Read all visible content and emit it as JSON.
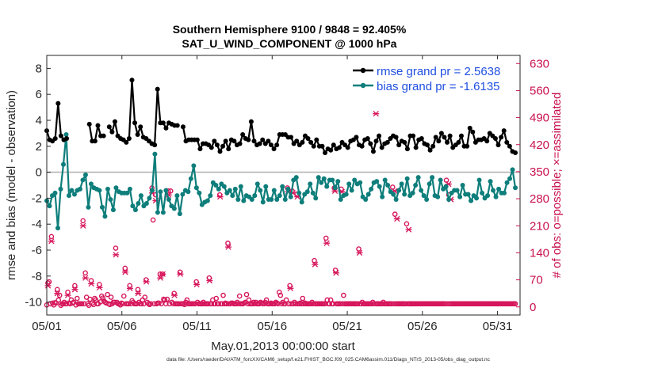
{
  "title": {
    "line1": "Southern Hemisphere 9100 / 9848 = 92.405%",
    "line2": "SAT_U_WIND_COMPONENT @ 1000 hPa"
  },
  "chart_data": {
    "type": "line",
    "title": "Southern Hemisphere 9100 / 9848 = 92.405%  SAT_U_WIND_COMPONENT @ 1000 hPa",
    "xlabel": "May.01,2013 00:00:00 start",
    "ylabel_left": "rmse and bias (model - observation)",
    "ylabel_right": "# of obs: o=possible; ×=assimilated",
    "xlim": [
      0,
      31.5
    ],
    "ylim_left": [
      -11,
      9
    ],
    "ylim_right": [
      -21,
      651
    ],
    "x_tick_values": [
      0,
      5,
      10,
      15,
      20,
      25,
      30
    ],
    "x_tick_labels": [
      "05/01",
      "05/06",
      "05/11",
      "05/16",
      "05/21",
      "05/26",
      "05/31"
    ],
    "y_left_ticks": [
      -10,
      -8,
      -6,
      -4,
      -2,
      0,
      2,
      4,
      6,
      8
    ],
    "y_right_ticks": [
      0,
      70,
      140,
      210,
      280,
      350,
      420,
      490,
      560,
      630
    ],
    "x_step_days": 0.25,
    "legend": {
      "position": "top-right",
      "entries": [
        "rmse grand pr = 2.5638",
        "bias grand pr = -1.6135"
      ]
    },
    "colors": {
      "rmse": "#000000",
      "bias": "#0e7e7b",
      "obs": "#d6175c",
      "right_axis": "#c8104f",
      "legend_text": "#1f4fe0",
      "zero_line": "#b4b4b4"
    },
    "series": [
      {
        "name": "rmse",
        "axis": "left",
        "values": [
          3.2,
          2.5,
          2.4,
          2.6,
          5.3,
          2.8,
          2.5,
          2.6,
          null,
          null,
          null,
          null,
          null,
          null,
          null,
          3.7,
          2.4,
          2.4,
          3.6,
          2.8,
          2.8,
          null,
          3.5,
          3.1,
          3.9,
          2.8,
          2.6,
          2.5,
          2.3,
          2.6,
          7.1,
          3.8,
          2.9,
          3.5,
          2.7,
          2.6,
          2.4,
          2.2,
          2.1,
          6.4,
          3.8,
          3.8,
          3.4,
          3.8,
          3.7,
          3.6,
          3.6,
          null,
          3.5,
          2.4,
          2.5,
          2.5,
          2.5,
          2.5,
          1.8,
          2.2,
          2.2,
          2.1,
          1.9,
          2.4,
          2.1,
          1.6,
          2.0,
          2.4,
          1.8,
          2.5,
          2.4,
          2.1,
          2.2,
          2.9,
          2.6,
          2.5,
          3.9,
          2.4,
          2.1,
          2.2,
          2.5,
          2.2,
          2.4,
          2.1,
          1.8,
          2.1,
          2.9,
          2.9,
          2.9,
          2.7,
          2.7,
          2.2,
          2.4,
          2.1,
          2.3,
          2.8,
          2.6,
          2.3,
          2.0,
          2.5,
          2.0,
          2.0,
          1.5,
          1.8,
          1.7,
          2.1,
          1.8,
          1.9,
          2.3,
          2.1,
          1.9,
          2.4,
          2.5,
          2.7,
          2.1,
          2.0,
          2.5,
          2.6,
          2.2,
          1.6,
          2.4,
          2.8,
          1.9,
          2.2,
          2.3,
          2.6,
          2.8,
          2.7,
          2.1,
          2.4,
          2.3,
          1.8,
          2.8,
          2.8,
          1.9,
          2.5,
          2.6,
          2.2,
          2.1,
          1.7,
          2.0,
          2.7,
          2.4,
          3.0,
          2.7,
          2.3,
          2.8,
          1.9,
          2.1,
          2.3,
          2.8,
          2.0,
          2.0,
          3.4,
          3.1,
          2.3,
          2.5,
          2.5,
          2.6,
          2.4,
          3.0,
          2.8,
          2.6,
          2.1,
          2.7,
          3.2,
          2.3,
          2.0,
          1.6,
          1.5
        ]
      },
      {
        "name": "bias",
        "axis": "left",
        "values": [
          -2.2,
          -2.6,
          -1.8,
          -1.6,
          -4.3,
          -1.3,
          0.6,
          2.9,
          -1.8,
          -1.4,
          -1.7,
          -1.4,
          -1.3,
          -0.6,
          -0.2,
          -2.7,
          -0.9,
          -1.2,
          -1.3,
          -1.4,
          -2.7,
          -3.4,
          -1.3,
          -2.1,
          -2.9,
          -1.2,
          -1.5,
          -1.6,
          -1.6,
          -1.6,
          -1.3,
          -2.6,
          -2.9,
          -2.4,
          -1.8,
          -2.6,
          -2.4,
          -2.0,
          -1.4,
          1.4,
          -3.1,
          -1.5,
          -3.1,
          -1.4,
          -2.1,
          -2.6,
          -2.8,
          -1.8,
          -3.2,
          -1.7,
          -1.4,
          -1.5,
          -0.5,
          0.5,
          -1.2,
          -1.6,
          -2.5,
          -2.3,
          -2.2,
          -1.8,
          -0.8,
          -1.0,
          -1.3,
          -0.9,
          -1.1,
          -1.6,
          -1.4,
          -1.8,
          -1.3,
          -2.1,
          -1.1,
          -2.2,
          -1.8,
          -1.9,
          -2.1,
          -1.8,
          -0.9,
          -1.4,
          -2.3,
          -1.1,
          -2.1,
          -2.1,
          -1.4,
          -2.1,
          -1.8,
          -1.1,
          -2.1,
          -1.3,
          -1.9,
          -0.6,
          -0.4,
          -1.6,
          -2.3,
          -1.7,
          -1.5,
          -0.9,
          -1.6,
          -2.0,
          -0.4,
          -0.8,
          -0.5,
          -1.1,
          -0.6,
          -0.6,
          -1.2,
          -0.7,
          -2.1,
          -1.8,
          -1.7,
          -0.9,
          -1.4,
          -0.6,
          -0.9,
          -0.8,
          -1.9,
          -2.1,
          -1.7,
          -1.3,
          -0.8,
          -0.7,
          -1.1,
          -1.9,
          -0.6,
          -1.0,
          -1.5,
          -1.7,
          -2.1,
          -1.4,
          -0.9,
          -1.7,
          -0.5,
          -1.8,
          -1.6,
          -1.0,
          -0.4,
          -1.4,
          -1.8,
          -2.1,
          -0.9,
          -0.4,
          -1.8,
          -1.9,
          -0.6,
          -1.3,
          -1.1,
          -2.1,
          -1.6,
          -1.4,
          -1.4,
          -1.9,
          -1.0,
          -1.7,
          -1.7,
          -2.2,
          -1.8,
          -2.0,
          -0.6,
          -1.6,
          -2.0,
          -1.8,
          -0.7,
          -1.4,
          -1.9,
          -1.3,
          -1.6,
          -1.6,
          -0.8,
          -0.5,
          0.2,
          -1.2
        ]
      },
      {
        "name": "possible",
        "axis": "right",
        "marker": "o",
        "values": [
          5,
          62,
          65,
          8,
          182,
          10,
          5,
          11,
          10,
          45,
          18,
          30,
          4,
          8,
          8,
          12,
          8,
          8,
          38,
          10,
          8,
          18,
          10,
          12,
          55,
          5,
          22,
          8,
          8,
          8,
          8,
          223,
          8,
          88,
          25,
          8,
          4,
          20,
          68,
          10,
          6,
          22,
          18,
          8,
          8,
          58,
          13,
          28,
          23,
          15,
          12,
          10,
          32,
          8,
          6,
          25,
          8,
          12,
          12,
          152,
          12,
          8,
          8,
          5,
          10,
          8,
          28,
          100,
          8,
          8,
          8,
          55,
          8,
          16,
          12,
          8,
          8,
          8,
          45,
          12,
          8,
          8,
          18,
          8,
          25,
          70,
          12,
          8,
          6,
          8,
          308,
          225,
          8,
          290,
          8,
          10,
          10,
          85,
          8,
          85,
          20,
          18,
          8,
          20,
          300,
          8,
          300,
          12,
          8,
          35,
          8,
          8,
          8,
          8,
          90,
          8,
          8,
          8,
          6,
          12,
          18,
          8,
          8,
          8,
          8,
          8,
          8,
          8,
          65,
          12,
          8,
          8,
          8,
          8,
          12,
          8,
          8,
          8,
          8,
          75,
          8,
          8,
          18,
          8,
          8,
          22,
          8,
          8,
          290,
          8,
          8,
          30,
          8,
          10,
          8,
          165,
          8,
          8,
          10,
          10,
          8,
          8,
          8,
          12,
          8,
          28,
          8,
          8,
          8,
          10,
          12,
          32,
          8,
          18,
          8,
          8,
          8,
          12,
          8,
          12,
          8,
          8,
          8,
          12,
          10,
          8,
          8,
          12,
          18,
          8,
          8,
          8,
          10,
          8,
          8,
          8,
          12,
          10,
          8,
          38,
          30,
          8,
          12,
          8,
          8,
          18,
          308,
          8,
          55,
          8,
          300,
          8,
          12,
          8,
          292,
          8,
          8,
          10,
          8,
          22,
          8,
          10,
          8,
          8,
          8,
          8,
          8,
          12,
          8,
          120,
          8,
          8,
          8,
          8,
          8,
          8,
          8,
          8,
          8,
          178,
          18,
          8,
          8,
          18,
          8,
          8,
          308,
          95,
          8,
          8,
          8,
          8,
          305,
          8,
          30,
          8,
          8,
          8,
          8,
          8,
          8,
          8,
          8,
          8,
          8,
          8,
          8,
          150,
          8,
          8,
          12,
          8,
          8,
          8,
          8,
          8,
          8,
          8,
          8,
          12,
          8,
          558,
          8,
          8,
          8,
          8,
          8,
          8,
          12,
          8,
          8,
          8,
          8,
          8,
          8,
          8,
          310,
          8,
          240,
          8,
          8,
          8,
          8,
          8,
          8,
          8,
          8,
          8,
          215,
          8,
          8,
          8,
          8,
          8,
          8,
          8,
          8,
          8,
          8,
          8,
          8,
          8,
          8,
          8,
          8,
          8,
          8,
          8,
          8,
          8,
          8,
          8,
          8,
          8,
          8,
          8,
          8,
          8,
          8,
          8,
          8,
          8,
          328,
          8,
          290,
          8,
          8,
          8,
          8,
          8,
          8,
          8,
          8,
          8,
          8,
          8,
          8,
          8,
          8,
          8,
          8,
          8,
          8,
          8,
          8,
          8,
          8,
          8,
          8,
          8,
          8,
          8,
          8,
          8,
          8,
          8,
          8,
          8,
          8,
          8,
          8,
          8,
          8,
          8,
          8,
          8,
          8,
          8,
          8,
          8,
          8,
          8,
          8,
          8,
          8,
          8,
          8,
          8,
          8,
          8,
          8,
          8
        ]
      },
      {
        "name": "assimilated",
        "axis": "right",
        "marker": "x",
        "values": [
          0,
          55,
          0,
          0,
          170,
          0,
          0,
          0,
          0,
          35,
          0,
          0,
          0,
          0,
          0,
          0,
          0,
          0,
          30,
          0,
          0,
          0,
          0,
          0,
          45,
          0,
          0,
          0,
          0,
          0,
          0,
          210,
          0,
          75,
          0,
          0,
          0,
          0,
          60,
          0,
          0,
          0,
          0,
          0,
          0,
          50,
          0,
          0,
          0,
          0,
          0,
          0,
          0,
          0,
          0,
          0,
          0,
          0,
          0,
          135,
          0,
          0,
          0,
          0,
          0,
          0,
          0,
          90,
          0,
          0,
          0,
          48,
          0,
          0,
          0,
          0,
          0,
          0,
          35,
          0,
          0,
          0,
          0,
          0,
          0,
          65,
          0,
          0,
          0,
          0,
          295,
          0,
          0,
          275,
          0,
          0,
          0,
          75,
          0,
          85,
          0,
          0,
          0,
          0,
          290,
          0,
          0,
          0,
          0,
          30,
          0,
          0,
          0,
          0,
          85,
          0,
          0,
          0,
          0,
          0,
          0,
          0,
          0,
          0,
          0,
          0,
          0,
          0,
          58,
          0,
          0,
          0,
          0,
          0,
          0,
          0,
          0,
          0,
          0,
          68,
          0,
          0,
          0,
          0,
          0,
          0,
          0,
          0,
          285,
          0,
          0,
          0,
          0,
          0,
          0,
          155,
          0,
          0,
          0,
          0,
          0,
          0,
          0,
          0,
          0,
          0,
          0,
          0,
          0,
          0,
          0,
          0,
          0,
          0,
          0,
          0,
          0,
          0,
          0,
          0,
          0,
          0,
          0,
          0,
          0,
          0,
          0,
          0,
          0,
          0,
          0,
          0,
          0,
          0,
          0,
          0,
          0,
          0,
          0,
          0,
          0,
          0,
          0,
          0,
          0,
          0,
          298,
          0,
          48,
          0,
          295,
          0,
          0,
          0,
          285,
          0,
          0,
          0,
          0,
          0,
          0,
          0,
          0,
          0,
          0,
          0,
          0,
          0,
          0,
          110,
          0,
          0,
          0,
          0,
          0,
          0,
          0,
          0,
          0,
          165,
          0,
          0,
          0,
          0,
          0,
          0,
          300,
          88,
          0,
          0,
          0,
          0,
          298,
          0,
          0,
          0,
          0,
          0,
          0,
          0,
          0,
          0,
          0,
          0,
          0,
          0,
          0,
          140,
          0,
          0,
          0,
          0,
          0,
          0,
          0,
          0,
          0,
          0,
          0,
          0,
          0,
          500,
          0,
          0,
          0,
          0,
          0,
          0,
          0,
          0,
          0,
          0,
          0,
          0,
          0,
          0,
          0,
          300,
          0,
          228,
          0,
          0,
          0,
          0,
          0,
          0,
          0,
          0,
          0,
          200,
          0,
          0,
          0,
          0,
          0,
          0,
          0,
          0,
          0,
          0,
          0,
          0,
          0,
          0,
          0,
          0,
          0,
          0,
          0,
          0,
          0,
          0,
          0,
          0,
          0,
          0,
          0,
          0,
          0,
          0,
          0,
          0,
          0,
          318,
          0,
          278,
          0,
          0,
          0,
          0,
          0,
          0,
          0,
          0,
          0,
          0,
          0,
          0,
          0,
          0,
          0,
          0,
          0,
          0,
          0,
          0,
          0,
          0,
          0,
          0,
          0,
          0,
          0,
          0,
          0,
          0,
          0,
          0,
          0,
          0,
          0,
          0,
          0,
          0,
          0,
          0,
          0,
          0,
          0,
          0,
          0,
          0,
          0,
          0,
          0,
          0,
          0,
          0,
          0,
          0,
          0
        ]
      }
    ]
  },
  "footer": {
    "datafile": "data file: /Users/raeder/DAI/ATM_forcXX/CAM6_setup/f.e21.FHIST_BGC.f09_025.CAM6assim.011/Diags_NTrS_2013-05/obs_diag_output.nc"
  }
}
